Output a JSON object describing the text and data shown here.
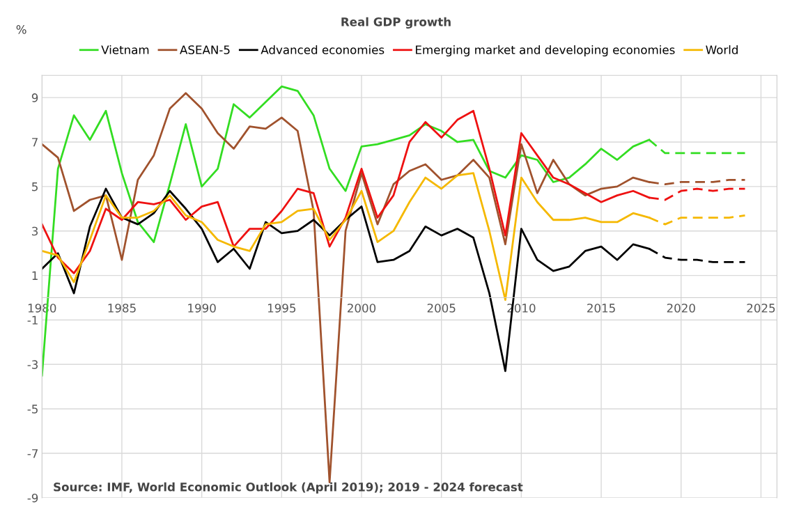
{
  "chart_data": {
    "type": "line",
    "title": "Real GDP growth",
    "ylabel": "%",
    "x": [
      1980,
      1981,
      1982,
      1983,
      1984,
      1985,
      1986,
      1987,
      1988,
      1989,
      1990,
      1991,
      1992,
      1993,
      1994,
      1995,
      1996,
      1997,
      1998,
      1999,
      2000,
      2001,
      2002,
      2003,
      2004,
      2005,
      2006,
      2007,
      2008,
      2009,
      2010,
      2011,
      2012,
      2013,
      2014,
      2015,
      2016,
      2017,
      2018
    ],
    "series": [
      {
        "name": "Vietnam",
        "color": "#33dd22",
        "line_style": "solid",
        "values": [
          -3.5,
          5.8,
          8.2,
          7.1,
          8.4,
          5.6,
          3.4,
          2.5,
          5.1,
          7.8,
          5.0,
          5.8,
          8.7,
          8.1,
          8.8,
          9.5,
          9.3,
          8.2,
          5.8,
          4.8,
          6.8,
          6.9,
          7.1,
          7.3,
          7.8,
          7.5,
          7.0,
          7.1,
          5.7,
          5.4,
          6.4,
          6.2,
          5.2,
          5.4,
          6.0,
          6.7,
          6.2,
          6.8,
          7.1
        ]
      },
      {
        "name": "ASEAN-5",
        "color": "#a0522d",
        "line_style": "solid",
        "values": [
          6.9,
          6.3,
          3.9,
          4.4,
          4.6,
          1.7,
          5.3,
          6.4,
          8.5,
          9.2,
          8.5,
          7.4,
          6.7,
          7.7,
          7.6,
          8.1,
          7.5,
          3.9,
          -8.3,
          3.0,
          5.6,
          3.3,
          5.1,
          5.7,
          6.0,
          5.3,
          5.5,
          6.2,
          5.4,
          2.4,
          6.9,
          4.7,
          6.2,
          5.1,
          4.6,
          4.9,
          5.0,
          5.4,
          5.2
        ]
      },
      {
        "name": "Advanced economies",
        "color": "#000000",
        "line_style": "solid",
        "values": [
          1.3,
          2.0,
          0.2,
          3.2,
          4.9,
          3.6,
          3.3,
          3.8,
          4.8,
          4.0,
          3.1,
          1.6,
          2.2,
          1.3,
          3.4,
          2.9,
          3.0,
          3.5,
          2.8,
          3.5,
          4.1,
          1.6,
          1.7,
          2.1,
          3.2,
          2.8,
          3.1,
          2.7,
          0.2,
          -3.3,
          3.1,
          1.7,
          1.2,
          1.4,
          2.1,
          2.3,
          1.7,
          2.4,
          2.2
        ]
      },
      {
        "name": "Emerging market and developing economies",
        "color": "#ee1111",
        "line_style": "solid",
        "values": [
          3.3,
          1.8,
          1.1,
          2.1,
          4.0,
          3.5,
          4.3,
          4.2,
          4.4,
          3.5,
          4.1,
          4.3,
          2.3,
          3.1,
          3.1,
          3.9,
          4.9,
          4.7,
          2.3,
          3.6,
          5.8,
          3.6,
          4.6,
          7.0,
          7.9,
          7.2,
          8.0,
          8.4,
          5.8,
          2.8,
          7.4,
          6.4,
          5.4,
          5.1,
          4.7,
          4.3,
          4.6,
          4.8,
          4.5
        ]
      },
      {
        "name": "World",
        "color": "#f5b800",
        "line_style": "solid",
        "values": [
          2.1,
          1.9,
          0.7,
          2.6,
          4.6,
          3.6,
          3.6,
          3.9,
          4.6,
          3.7,
          3.4,
          2.6,
          2.3,
          2.1,
          3.3,
          3.4,
          3.9,
          4.0,
          2.6,
          3.5,
          4.8,
          2.5,
          3.0,
          4.3,
          5.4,
          4.9,
          5.5,
          5.6,
          3.0,
          -0.1,
          5.4,
          4.3,
          3.5,
          3.5,
          3.6,
          3.4,
          3.4,
          3.8,
          3.6
        ]
      },
      {
        "color": "#33dd22",
        "line_style": "dashed",
        "x": [
          2018,
          2019,
          2020,
          2021,
          2022,
          2023,
          2024
        ],
        "values": [
          7.1,
          6.5,
          6.5,
          6.5,
          6.5,
          6.5,
          6.5
        ]
      },
      {
        "color": "#a0522d",
        "line_style": "dashed",
        "x": [
          2018,
          2019,
          2020,
          2021,
          2022,
          2023,
          2024
        ],
        "values": [
          5.2,
          5.1,
          5.2,
          5.2,
          5.2,
          5.3,
          5.3
        ]
      },
      {
        "color": "#000000",
        "line_style": "dashed",
        "x": [
          2018,
          2019,
          2020,
          2021,
          2022,
          2023,
          2024
        ],
        "values": [
          2.2,
          1.8,
          1.7,
          1.7,
          1.6,
          1.6,
          1.6
        ]
      },
      {
        "color": "#ee1111",
        "line_style": "dashed",
        "x": [
          2018,
          2019,
          2020,
          2021,
          2022,
          2023,
          2024
        ],
        "values": [
          4.5,
          4.4,
          4.8,
          4.9,
          4.8,
          4.9,
          4.9
        ]
      },
      {
        "color": "#f5b800",
        "line_style": "dashed",
        "x": [
          2018,
          2019,
          2020,
          2021,
          2022,
          2023,
          2024
        ],
        "values": [
          3.6,
          3.3,
          3.6,
          3.6,
          3.6,
          3.6,
          3.7
        ]
      }
    ],
    "xlim": [
      1980,
      2026
    ],
    "xticks": [
      1980,
      1985,
      1990,
      1995,
      2000,
      2005,
      2010,
      2015,
      2020,
      2025
    ],
    "ylim": [
      -9,
      10
    ],
    "yticks": [
      -9,
      -7,
      -5,
      -3,
      -1,
      1,
      3,
      5,
      7,
      9
    ],
    "grid": true,
    "legend": "top",
    "marker": "none",
    "annotations": [
      "Source: IMF, World Economic Outlook (April 2019); 2019 - 2024 forecast"
    ]
  }
}
